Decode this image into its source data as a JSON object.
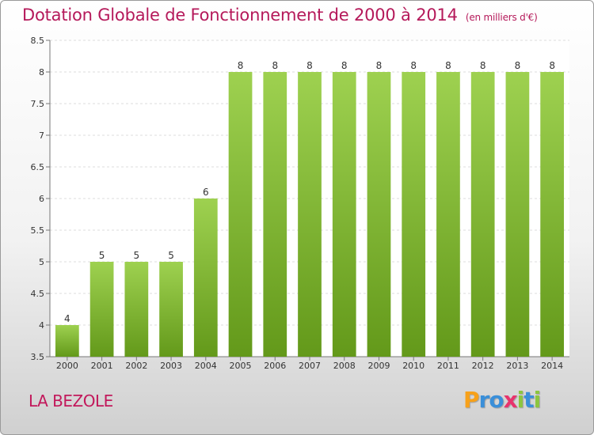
{
  "chart_data": {
    "type": "bar",
    "title": "Dotation Globale de Fonctionnement de 2000 à 2014",
    "unit": "(en milliers d'€)",
    "categories": [
      "2000",
      "2001",
      "2002",
      "2003",
      "2004",
      "2005",
      "2006",
      "2007",
      "2008",
      "2009",
      "2010",
      "2011",
      "2012",
      "2013",
      "2014"
    ],
    "values": [
      4,
      5,
      5,
      5,
      6,
      8,
      8,
      8,
      8,
      8,
      8,
      8,
      8,
      8,
      8
    ],
    "ylim": [
      3.5,
      8.5
    ],
    "yticks": [
      "3.5",
      "4",
      "4.5",
      "5",
      "5.5",
      "6",
      "6.5",
      "7",
      "7.5",
      "8",
      "8.5"
    ],
    "grid": true,
    "bar_color": "#8cc63f"
  },
  "place": "LA BEZOLE",
  "logo": {
    "letters": [
      "P",
      "r",
      "o",
      "x",
      "i",
      "t",
      "i"
    ],
    "colors": [
      "#f7a11a",
      "#3a8fd9",
      "#3a8fd9",
      "#e8336d",
      "#8cc63f",
      "#3a8fd9",
      "#8cc63f"
    ]
  }
}
